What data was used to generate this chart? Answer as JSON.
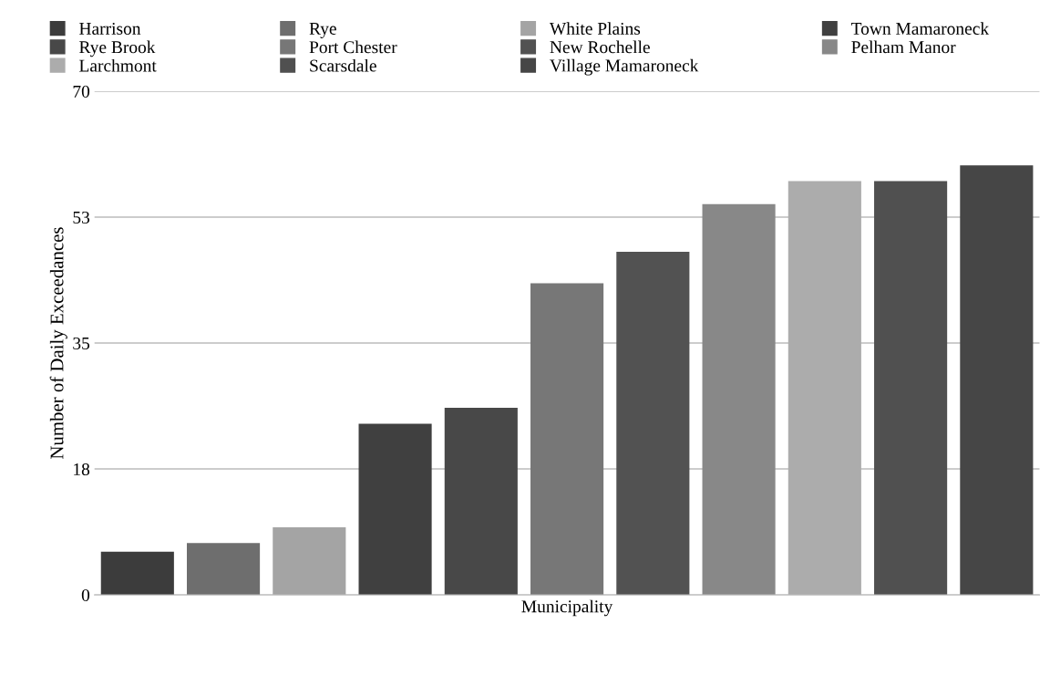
{
  "chart_data": {
    "type": "bar",
    "xlabel": "Municipality",
    "ylabel": "Number of Daily Exceedances",
    "categories": [
      null,
      null,
      null,
      null,
      null,
      null,
      null,
      null,
      null,
      null,
      null
    ],
    "series": [
      {
        "name": "Harrison",
        "color": "#3c3c3c",
        "values": [
          6,
          null,
          null,
          null,
          null,
          null,
          null,
          null,
          null,
          null,
          null
        ]
      },
      {
        "name": "Rye",
        "color": "#6e6e6e",
        "values": [
          null,
          7.2,
          null,
          null,
          null,
          null,
          null,
          null,
          null,
          null,
          null
        ]
      },
      {
        "name": "White Plains",
        "color": "#a4a4a4",
        "values": [
          null,
          null,
          9.4,
          null,
          null,
          null,
          null,
          null,
          null,
          null,
          null
        ]
      },
      {
        "name": "Town Mamaroneck",
        "color": "#404040",
        "values": [
          null,
          null,
          null,
          23.8,
          null,
          null,
          null,
          null,
          null,
          null,
          null
        ]
      },
      {
        "name": "Rye Brook",
        "color": "#484848",
        "values": [
          null,
          null,
          null,
          null,
          26,
          null,
          null,
          null,
          null,
          null,
          null
        ]
      },
      {
        "name": "Port Chester",
        "color": "#777777",
        "values": [
          null,
          null,
          null,
          null,
          null,
          43.3,
          null,
          null,
          null,
          null,
          null
        ]
      },
      {
        "name": "New Rochelle",
        "color": "#525252",
        "values": [
          null,
          null,
          null,
          null,
          null,
          null,
          47.7,
          null,
          null,
          null,
          null
        ]
      },
      {
        "name": "Pelham Manor",
        "color": "#888888",
        "values": [
          null,
          null,
          null,
          null,
          null,
          null,
          null,
          54.3,
          null,
          null,
          null
        ]
      },
      {
        "name": "Larchmont",
        "color": "#acacac",
        "values": [
          null,
          null,
          null,
          null,
          null,
          null,
          null,
          null,
          57.5,
          null,
          null
        ]
      },
      {
        "name": "Scarsdale",
        "color": "#505050",
        "values": [
          null,
          null,
          null,
          null,
          null,
          null,
          null,
          null,
          null,
          57.5,
          null
        ]
      },
      {
        "name": "Village Mamaroneck",
        "color": "#464646",
        "values": [
          null,
          null,
          null,
          null,
          null,
          null,
          null,
          null,
          null,
          null,
          59.7
        ]
      }
    ],
    "ylim": [
      0,
      70
    ],
    "yticks": [
      0,
      {
        "value": 17.5,
        "label": "18"
      },
      35,
      {
        "value": 52.5,
        "label": "53"
      },
      70
    ],
    "grid": "y",
    "legend": "top",
    "tick_labels": "y"
  }
}
